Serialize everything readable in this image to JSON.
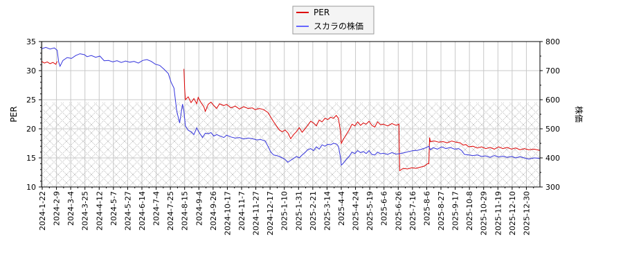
{
  "chart_data": {
    "type": "line",
    "title": "",
    "legend": {
      "position": "top-center",
      "entries": [
        {
          "label": "PER",
          "color": "#dd0000"
        },
        {
          "label": "スカラの株価",
          "color": "#3333dd"
        }
      ]
    },
    "xlabel": "",
    "ylabel_left": "PER",
    "ylabel_right": "株価",
    "ylim_left": [
      10,
      35
    ],
    "ylim_right": [
      300,
      800
    ],
    "yticks_left": [
      10,
      15,
      20,
      25,
      30,
      35
    ],
    "yticks_right": [
      300,
      400,
      500,
      600,
      700,
      800
    ],
    "grid": true,
    "hatched_region": {
      "from_per": 10,
      "to_per": 24.5,
      "pattern": "cross-hatch",
      "color": "#bbbbbb"
    },
    "x_tick_labels": [
      "2024-1-22",
      "2024-2-9",
      "2024-3-4",
      "2024-3-25",
      "2024-4-12",
      "2024-5-7",
      "2024-5-27",
      "2024-6-14",
      "2024-7-4",
      "2024-7-25",
      "2024-8-15",
      "2024-9-4",
      "2024-9-26",
      "2024-10-17",
      "2024-11-7",
      "2024-11-27",
      "2024-12-17",
      "2025-1-10",
      "2025-1-31",
      "2025-2-21",
      "2025-3-14",
      "2025-4-4",
      "2025-4-24",
      "2025-5-19",
      "2025-6-6",
      "2025-6-26",
      "2025-7-16",
      "2025-8-6",
      "2025-8-27",
      "2025-9-17",
      "2025-10-8",
      "2025-10-29",
      "2025-11-19",
      "2025-12-10",
      "2025-12-30"
    ],
    "series": [
      {
        "name": "PER",
        "axis": "left",
        "color": "#dd0000",
        "segments": [
          [
            [
              0.0,
              31.6
            ],
            [
              0.2,
              31.3
            ],
            [
              0.4,
              31.5
            ],
            [
              0.6,
              31.2
            ],
            [
              0.8,
              31.4
            ],
            [
              1.0,
              31.1
            ],
            [
              1.1,
              31.6
            ]
          ],
          [
            [
              10.0,
              30.3
            ],
            [
              10.05,
              27.0
            ],
            [
              10.1,
              25.0
            ],
            [
              10.3,
              25.5
            ],
            [
              10.5,
              24.5
            ],
            [
              10.7,
              25.2
            ],
            [
              10.9,
              24.3
            ],
            [
              11.0,
              25.4
            ],
            [
              11.2,
              24.5
            ],
            [
              11.4,
              23.8
            ],
            [
              11.5,
              23.0
            ],
            [
              11.7,
              24.2
            ],
            [
              11.9,
              24.6
            ],
            [
              12.1,
              24.0
            ],
            [
              12.3,
              23.5
            ],
            [
              12.5,
              24.3
            ],
            [
              12.8,
              24.0
            ],
            [
              13.0,
              24.2
            ],
            [
              13.3,
              23.6
            ],
            [
              13.6,
              23.9
            ],
            [
              13.9,
              23.4
            ],
            [
              14.2,
              23.8
            ],
            [
              14.5,
              23.5
            ],
            [
              14.8,
              23.6
            ],
            [
              15.0,
              23.3
            ],
            [
              15.3,
              23.5
            ],
            [
              15.6,
              23.3
            ],
            [
              15.9,
              22.8
            ],
            [
              16.1,
              22.0
            ],
            [
              16.3,
              21.2
            ],
            [
              16.5,
              20.5
            ],
            [
              16.7,
              19.8
            ],
            [
              16.9,
              19.5
            ],
            [
              17.1,
              19.8
            ],
            [
              17.3,
              19.3
            ],
            [
              17.5,
              18.3
            ],
            [
              17.7,
              19.0
            ],
            [
              17.9,
              19.5
            ],
            [
              18.1,
              20.2
            ],
            [
              18.3,
              19.4
            ],
            [
              18.5,
              20.0
            ],
            [
              18.7,
              20.6
            ],
            [
              18.9,
              21.3
            ],
            [
              19.1,
              21.0
            ],
            [
              19.3,
              20.5
            ],
            [
              19.5,
              21.5
            ],
            [
              19.7,
              21.2
            ],
            [
              19.9,
              21.8
            ],
            [
              20.1,
              21.6
            ],
            [
              20.3,
              22.0
            ],
            [
              20.5,
              21.8
            ],
            [
              20.7,
              22.3
            ],
            [
              20.85,
              21.8
            ],
            [
              21.0,
              19.5
            ],
            [
              21.05,
              17.5
            ],
            [
              21.2,
              18.2
            ],
            [
              21.4,
              19.0
            ],
            [
              21.6,
              19.8
            ],
            [
              21.8,
              20.8
            ],
            [
              22.0,
              20.5
            ],
            [
              22.2,
              21.2
            ],
            [
              22.4,
              20.6
            ],
            [
              22.6,
              21.0
            ],
            [
              22.8,
              20.8
            ],
            [
              23.0,
              21.3
            ],
            [
              23.2,
              20.6
            ],
            [
              23.4,
              20.3
            ],
            [
              23.6,
              21.2
            ],
            [
              23.8,
              20.7
            ],
            [
              24.0,
              20.8
            ],
            [
              24.3,
              20.5
            ],
            [
              24.6,
              20.9
            ],
            [
              24.9,
              20.6
            ],
            [
              25.1,
              20.8
            ],
            [
              25.15,
              12.8
            ],
            [
              25.4,
              13.2
            ],
            [
              25.7,
              13.1
            ],
            [
              26.0,
              13.3
            ],
            [
              26.3,
              13.2
            ],
            [
              26.6,
              13.4
            ],
            [
              26.9,
              13.6
            ],
            [
              27.1,
              14.0
            ],
            [
              27.2,
              14.0
            ],
            [
              27.25,
              18.5
            ],
            [
              27.3,
              17.8
            ],
            [
              27.6,
              17.9
            ],
            [
              27.9,
              17.7
            ],
            [
              28.2,
              17.8
            ],
            [
              28.5,
              17.6
            ],
            [
              28.8,
              17.9
            ],
            [
              29.1,
              17.7
            ],
            [
              29.4,
              17.6
            ],
            [
              29.6,
              17.2
            ],
            [
              29.8,
              17.3
            ],
            [
              30.0,
              16.9
            ],
            [
              30.3,
              17.0
            ],
            [
              30.6,
              16.7
            ],
            [
              30.9,
              16.9
            ],
            [
              31.2,
              16.6
            ],
            [
              31.5,
              16.8
            ],
            [
              31.8,
              16.5
            ],
            [
              32.1,
              16.9
            ],
            [
              32.4,
              16.6
            ],
            [
              32.7,
              16.8
            ],
            [
              33.0,
              16.5
            ],
            [
              33.3,
              16.7
            ],
            [
              33.6,
              16.4
            ],
            [
              33.9,
              16.6
            ],
            [
              34.2,
              16.4
            ],
            [
              34.6,
              16.5
            ],
            [
              35.0,
              16.3
            ]
          ]
        ]
      },
      {
        "name": "スカラの株価",
        "axis": "right",
        "color": "#3333dd",
        "segments": [
          [
            [
              0.0,
              775
            ],
            [
              0.3,
              780
            ],
            [
              0.6,
              774
            ],
            [
              0.9,
              778
            ],
            [
              1.1,
              770
            ],
            [
              1.2,
              730
            ],
            [
              1.3,
              715
            ],
            [
              1.5,
              735
            ],
            [
              1.8,
              745
            ],
            [
              2.1,
              742
            ],
            [
              2.4,
              752
            ],
            [
              2.7,
              758
            ],
            [
              3.0,
              755
            ],
            [
              3.2,
              748
            ],
            [
              3.5,
              752
            ],
            [
              3.8,
              746
            ],
            [
              4.1,
              750
            ],
            [
              4.4,
              734
            ],
            [
              4.7,
              735
            ],
            [
              5.0,
              730
            ],
            [
              5.3,
              734
            ],
            [
              5.6,
              728
            ],
            [
              5.9,
              733
            ],
            [
              6.2,
              729
            ],
            [
              6.5,
              732
            ],
            [
              6.8,
              726
            ],
            [
              7.1,
              735
            ],
            [
              7.4,
              738
            ],
            [
              7.7,
              732
            ],
            [
              8.0,
              722
            ],
            [
              8.3,
              718
            ],
            [
              8.6,
              705
            ],
            [
              8.9,
              690
            ],
            [
              9.1,
              660
            ],
            [
              9.3,
              640
            ],
            [
              9.5,
              560
            ],
            [
              9.7,
              520
            ],
            [
              9.9,
              585
            ],
            [
              10.0,
              560
            ],
            [
              10.1,
              510
            ],
            [
              10.3,
              495
            ],
            [
              10.5,
              490
            ],
            [
              10.7,
              480
            ],
            [
              10.9,
              503
            ],
            [
              11.1,
              485
            ],
            [
              11.3,
              470
            ],
            [
              11.5,
              485
            ],
            [
              11.7,
              483
            ],
            [
              11.9,
              487
            ],
            [
              12.1,
              475
            ],
            [
              12.3,
              480
            ],
            [
              12.5,
              476
            ],
            [
              12.8,
              470
            ],
            [
              13.0,
              478
            ],
            [
              13.3,
              472
            ],
            [
              13.6,
              468
            ],
            [
              13.9,
              470
            ],
            [
              14.2,
              465
            ],
            [
              14.5,
              468
            ],
            [
              14.8,
              466
            ],
            [
              15.1,
              462
            ],
            [
              15.4,
              463
            ],
            [
              15.7,
              458
            ],
            [
              15.9,
              440
            ],
            [
              16.1,
              420
            ],
            [
              16.3,
              410
            ],
            [
              16.5,
              408
            ],
            [
              16.7,
              405
            ],
            [
              16.9,
              400
            ],
            [
              17.1,
              395
            ],
            [
              17.3,
              385
            ],
            [
              17.5,
              392
            ],
            [
              17.7,
              398
            ],
            [
              17.9,
              405
            ],
            [
              18.1,
              400
            ],
            [
              18.3,
              410
            ],
            [
              18.5,
              418
            ],
            [
              18.7,
              428
            ],
            [
              18.9,
              432
            ],
            [
              19.1,
              425
            ],
            [
              19.3,
              438
            ],
            [
              19.5,
              430
            ],
            [
              19.7,
              445
            ],
            [
              19.9,
              440
            ],
            [
              20.1,
              447
            ],
            [
              20.3,
              445
            ],
            [
              20.5,
              450
            ],
            [
              20.7,
              448
            ],
            [
              20.85,
              440
            ],
            [
              21.0,
              400
            ],
            [
              21.05,
              375
            ],
            [
              21.2,
              382
            ],
            [
              21.4,
              395
            ],
            [
              21.6,
              405
            ],
            [
              21.8,
              420
            ],
            [
              22.0,
              415
            ],
            [
              22.2,
              425
            ],
            [
              22.4,
              418
            ],
            [
              22.6,
              422
            ],
            [
              22.8,
              415
            ],
            [
              23.0,
              425
            ],
            [
              23.2,
              412
            ],
            [
              23.4,
              410
            ],
            [
              23.6,
              420
            ],
            [
              23.8,
              414
            ],
            [
              24.0,
              416
            ],
            [
              24.3,
              412
            ],
            [
              24.6,
              418
            ],
            [
              24.9,
              413
            ],
            [
              25.2,
              415
            ],
            [
              25.5,
              418
            ],
            [
              25.8,
              422
            ],
            [
              26.1,
              425
            ],
            [
              26.4,
              426
            ],
            [
              26.7,
              430
            ],
            [
              27.0,
              435
            ],
            [
              27.2,
              440
            ],
            [
              27.3,
              428
            ],
            [
              27.5,
              435
            ],
            [
              27.8,
              430
            ],
            [
              28.1,
              438
            ],
            [
              28.4,
              432
            ],
            [
              28.7,
              436
            ],
            [
              29.0,
              430
            ],
            [
              29.3,
              432
            ],
            [
              29.5,
              425
            ],
            [
              29.7,
              412
            ],
            [
              30.0,
              410
            ],
            [
              30.3,
              408
            ],
            [
              30.6,
              410
            ],
            [
              30.9,
              405
            ],
            [
              31.2,
              407
            ],
            [
              31.5,
              402
            ],
            [
              31.8,
              408
            ],
            [
              32.1,
              403
            ],
            [
              32.4,
              406
            ],
            [
              32.7,
              402
            ],
            [
              33.0,
              405
            ],
            [
              33.3,
              400
            ],
            [
              33.6,
              404
            ],
            [
              33.9,
              400
            ],
            [
              34.2,
              396
            ],
            [
              34.6,
              400
            ],
            [
              35.0,
              398
            ]
          ]
        ]
      }
    ]
  }
}
